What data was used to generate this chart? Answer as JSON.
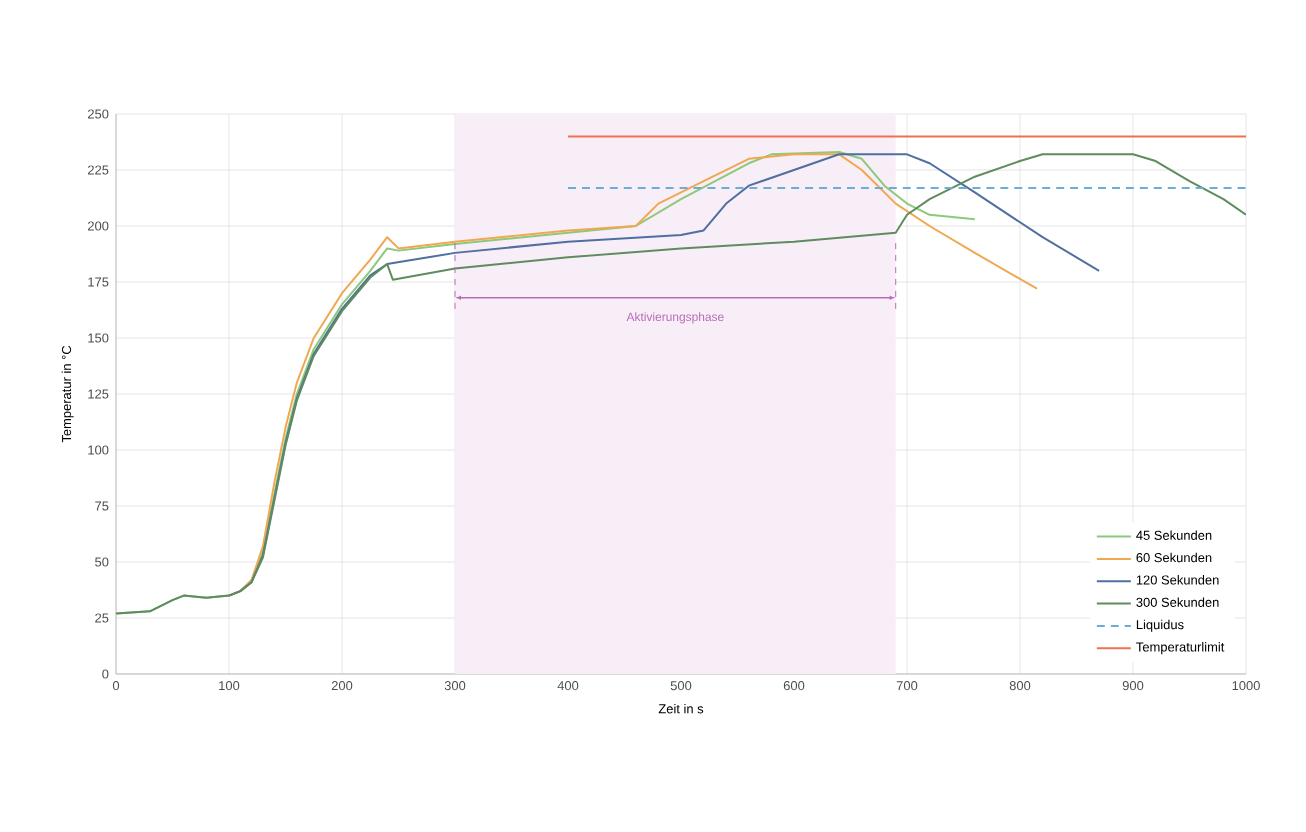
{
  "chart_data": {
    "type": "line",
    "xlabel": "Zeit in s",
    "ylabel": "Temperatur in °C",
    "xlim": [
      0,
      1000
    ],
    "ylim": [
      0,
      250
    ],
    "xticks": [
      0,
      100,
      200,
      300,
      400,
      500,
      600,
      700,
      800,
      900,
      1000
    ],
    "yticks": [
      0,
      25,
      50,
      75,
      100,
      125,
      150,
      175,
      200,
      225,
      250
    ],
    "grid": true,
    "legend": "bottom right",
    "line_style": "solid",
    "marker": "none",
    "series": [
      {
        "name": "45 Sekunden",
        "color": "#8cc97a",
        "x": [
          0,
          30,
          50,
          60,
          80,
          100,
          110,
          120,
          130,
          140,
          150,
          160,
          175,
          200,
          225,
          240,
          250,
          300,
          400,
          460,
          500,
          560,
          580,
          640,
          660,
          680,
          700,
          720,
          760
        ],
        "values": [
          27,
          28,
          33,
          35,
          34,
          35,
          37,
          42,
          55,
          80,
          105,
          125,
          145,
          165,
          180,
          190,
          189,
          192,
          197,
          200,
          212,
          228,
          232,
          233,
          230,
          218,
          210,
          205,
          203
        ]
      },
      {
        "name": "60 Sekunden",
        "color": "#f0a850",
        "x": [
          100,
          110,
          120,
          130,
          140,
          150,
          160,
          175,
          200,
          225,
          240,
          250,
          300,
          400,
          460,
          480,
          500,
          520,
          560,
          600,
          640,
          660,
          690,
          720,
          760,
          815
        ],
        "values": [
          35,
          37,
          42,
          57,
          85,
          110,
          130,
          150,
          170,
          185,
          195,
          190,
          193,
          198,
          200,
          210,
          215,
          220,
          230,
          232,
          232,
          225,
          210,
          200,
          188,
          172
        ]
      },
      {
        "name": "120 Sekunden",
        "color": "#4f6fa0",
        "x": [
          100,
          110,
          120,
          130,
          140,
          150,
          160,
          175,
          200,
          225,
          240,
          300,
          400,
          500,
          520,
          540,
          560,
          600,
          640,
          700,
          720,
          760,
          820,
          870
        ],
        "values": [
          35,
          37,
          41,
          53,
          78,
          103,
          123,
          143,
          163,
          178,
          183,
          188,
          193,
          196,
          198,
          210,
          218,
          225,
          232,
          232,
          228,
          215,
          195,
          180
        ]
      },
      {
        "name": "300 Sekunden",
        "color": "#5e8c5e",
        "x": [
          0,
          30,
          50,
          60,
          80,
          100,
          110,
          120,
          130,
          140,
          150,
          160,
          175,
          200,
          225,
          240,
          245,
          300,
          400,
          500,
          600,
          690,
          700,
          720,
          760,
          800,
          820,
          900,
          920,
          950,
          980,
          1000
        ],
        "values": [
          27,
          28,
          33,
          35,
          34,
          35,
          37,
          41,
          52,
          77,
          102,
          122,
          142,
          162,
          177,
          183,
          176,
          181,
          186,
          190,
          193,
          197,
          205,
          212,
          222,
          229,
          232,
          232,
          229,
          220,
          212,
          205
        ]
      },
      {
        "name": "Liquidus",
        "color": "#6aaed6",
        "line_style": "dashed",
        "x": [
          400,
          1000
        ],
        "values": [
          217,
          217
        ]
      },
      {
        "name": "Temperaturlimit",
        "color": "#f07050",
        "x": [
          400,
          1000
        ],
        "values": [
          240,
          240
        ]
      }
    ],
    "bands": [
      {
        "axis": "x",
        "from": 300,
        "to": 690,
        "label": "Aktivierungsphase",
        "color": "#f8eef8"
      }
    ]
  }
}
